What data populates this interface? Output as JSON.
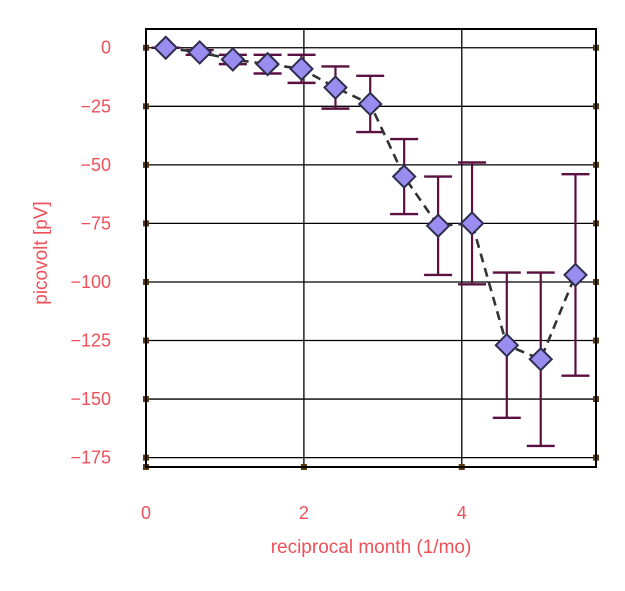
{
  "colors": {
    "tick_label": "#f0505a",
    "axis_label": "#f0505a",
    "grid": "#000000",
    "frame": "#000000",
    "tick_mark": "#5a3a10",
    "marker_fill": "#9b8cf0",
    "marker_edge": "#2e2e4e",
    "errorbar": "#5a1040",
    "line": "#333333"
  },
  "chart_data": {
    "type": "line",
    "title": "",
    "xlabel": "reciprocal month (1/mo)",
    "ylabel": "picovolt [pV]",
    "xlim": [
      0,
      5.7
    ],
    "ylim": [
      -179,
      8
    ],
    "xticks": [
      0,
      2,
      4
    ],
    "yticks": [
      0,
      -25,
      -50,
      -75,
      -100,
      -125,
      -150,
      -175
    ],
    "xtick_labels": [
      "0",
      "2",
      "4"
    ],
    "ytick_labels": [
      "0",
      "−25",
      "−50",
      "−75",
      "−100",
      "−125",
      "−150",
      "−175"
    ],
    "grid": true,
    "legend": "none",
    "marker": "diamond",
    "line_style": "dashed",
    "series": [
      {
        "x": [
          0.25,
          0.68,
          1.1,
          1.54,
          1.97,
          2.4,
          2.84,
          3.27,
          3.7,
          4.13,
          4.57,
          5.0,
          5.44
        ],
        "y": [
          0,
          -2,
          -5,
          -7,
          -9,
          -17,
          -24,
          -55,
          -76,
          -75,
          -127,
          -133,
          -97
        ],
        "err_low": [
          0,
          1,
          2,
          4,
          6,
          9,
          12,
          16,
          21,
          26,
          31,
          37,
          43
        ],
        "err_high": [
          0,
          1,
          2,
          4,
          6,
          9,
          12,
          16,
          21,
          26,
          31,
          37,
          43
        ]
      }
    ]
  }
}
